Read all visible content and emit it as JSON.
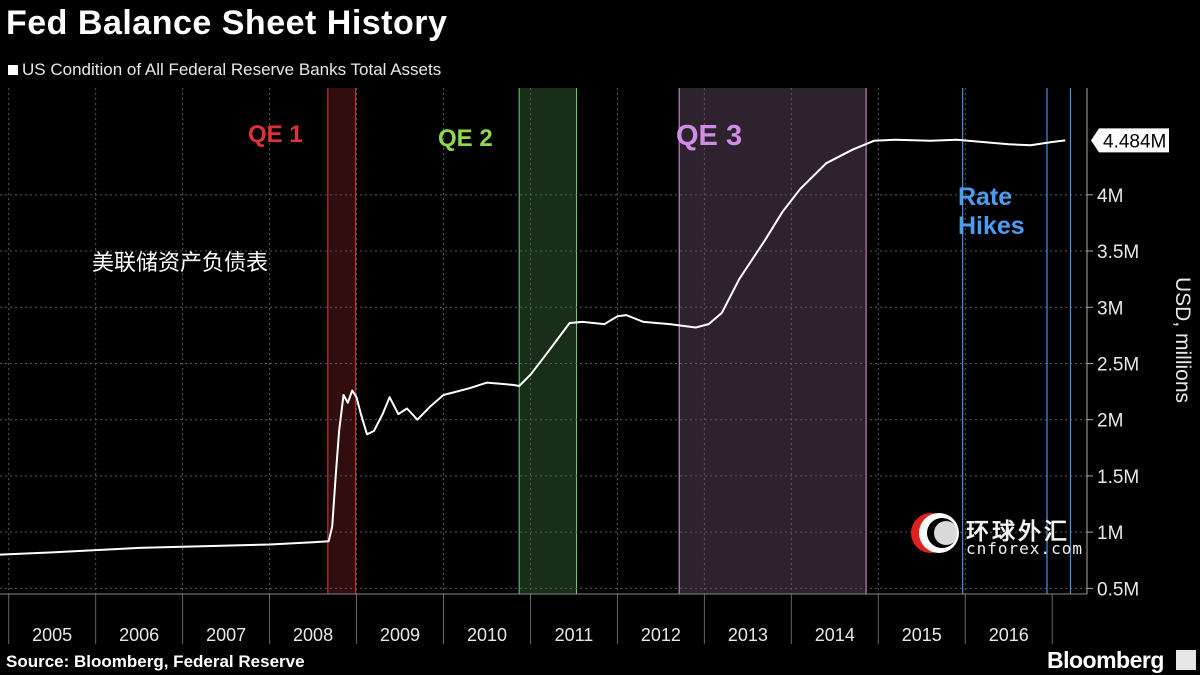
{
  "colors": {
    "background": "#000000",
    "line": "#ffffff",
    "qe1": "#e53a3a",
    "qe2": "#6dd06d",
    "qe3": "#d59bd8",
    "hikes": "#4a8fe0",
    "grid": "#5a5a5a"
  },
  "chart_data": {
    "type": "line",
    "title": "Fed Balance Sheet History",
    "series": [
      {
        "name": "US Condition of All Federal Reserve Banks Total Assets",
        "points": [
          [
            2004.9,
            0.8
          ],
          [
            2005.5,
            0.82
          ],
          [
            2006.0,
            0.84
          ],
          [
            2006.5,
            0.86
          ],
          [
            2007.0,
            0.87
          ],
          [
            2007.5,
            0.88
          ],
          [
            2008.0,
            0.89
          ],
          [
            2008.5,
            0.91
          ],
          [
            2008.68,
            0.92
          ],
          [
            2008.72,
            1.05
          ],
          [
            2008.76,
            1.5
          ],
          [
            2008.8,
            1.9
          ],
          [
            2008.85,
            2.22
          ],
          [
            2008.9,
            2.15
          ],
          [
            2008.95,
            2.26
          ],
          [
            2009.0,
            2.2
          ],
          [
            2009.05,
            2.05
          ],
          [
            2009.12,
            1.87
          ],
          [
            2009.2,
            1.9
          ],
          [
            2009.3,
            2.05
          ],
          [
            2009.38,
            2.2
          ],
          [
            2009.48,
            2.05
          ],
          [
            2009.58,
            2.1
          ],
          [
            2009.7,
            2.0
          ],
          [
            2009.85,
            2.12
          ],
          [
            2010.0,
            2.22
          ],
          [
            2010.3,
            2.28
          ],
          [
            2010.5,
            2.33
          ],
          [
            2010.8,
            2.31
          ],
          [
            2010.87,
            2.3
          ],
          [
            2011.0,
            2.4
          ],
          [
            2011.2,
            2.6
          ],
          [
            2011.45,
            2.86
          ],
          [
            2011.6,
            2.87
          ],
          [
            2011.85,
            2.85
          ],
          [
            2012.0,
            2.92
          ],
          [
            2012.1,
            2.93
          ],
          [
            2012.3,
            2.87
          ],
          [
            2012.6,
            2.85
          ],
          [
            2012.9,
            2.82
          ],
          [
            2013.05,
            2.85
          ],
          [
            2013.2,
            2.95
          ],
          [
            2013.4,
            3.25
          ],
          [
            2013.7,
            3.6
          ],
          [
            2013.9,
            3.85
          ],
          [
            2014.1,
            4.05
          ],
          [
            2014.4,
            4.28
          ],
          [
            2014.7,
            4.4
          ],
          [
            2014.95,
            4.48
          ],
          [
            2015.2,
            4.49
          ],
          [
            2015.6,
            4.48
          ],
          [
            2015.9,
            4.49
          ],
          [
            2016.2,
            4.47
          ],
          [
            2016.5,
            4.45
          ],
          [
            2016.75,
            4.44
          ],
          [
            2017.0,
            4.47
          ],
          [
            2017.15,
            4.484
          ]
        ]
      }
    ],
    "xlim": [
      2004.9,
      2017.4
    ],
    "ylim": [
      0.45,
      4.95
    ],
    "xticks": [
      2005,
      2006,
      2007,
      2008,
      2009,
      2010,
      2011,
      2012,
      2013,
      2014,
      2015,
      2016
    ],
    "yticks": [
      {
        "value": 0.5,
        "label": "0.5M"
      },
      {
        "value": 1.0,
        "label": "1M"
      },
      {
        "value": 1.5,
        "label": "1.5M"
      },
      {
        "value": 2.0,
        "label": "2M"
      },
      {
        "value": 2.5,
        "label": "2.5M"
      },
      {
        "value": 3.0,
        "label": "3M"
      },
      {
        "value": 3.5,
        "label": "3.5M"
      },
      {
        "value": 4.0,
        "label": "4M"
      }
    ],
    "ylabel": "USD, millions",
    "last_value_label": "4.484M",
    "last_value": 4.484,
    "shaded_regions": [
      {
        "name": "QE 1",
        "start": 2008.67,
        "end": 2008.99,
        "color": "#e53a3a"
      },
      {
        "name": "QE 2",
        "start": 2010.87,
        "end": 2011.53,
        "color": "#6dd06d"
      },
      {
        "name": "QE 3",
        "start": 2012.71,
        "end": 2014.86,
        "color": "#d59bd8"
      }
    ],
    "rate_hikes": [
      2015.97,
      2016.94,
      2017.21
    ],
    "annotations": [
      {
        "text": "QE 1",
        "color": "#e0303a"
      },
      {
        "text": "QE 2",
        "color": "#8fd84a"
      },
      {
        "text": "QE 3",
        "color": "#cf8de8"
      },
      {
        "text": "Rate",
        "color": "#4a9df0"
      },
      {
        "text": "Hikes",
        "color": "#4a9df0"
      },
      {
        "text": "美联储资产负债表",
        "color": "#ffffff"
      }
    ],
    "grid": true,
    "legend_position": "top-left"
  },
  "header": {
    "title": "Fed Balance Sheet History",
    "legend": "US Condition of All Federal Reserve Banks Total Assets"
  },
  "footer": {
    "source": "Source: Bloomberg, Federal Reserve",
    "brand": "Bloomberg"
  },
  "watermark": {
    "line1": "环球外汇",
    "line2": "cnforex.com"
  }
}
